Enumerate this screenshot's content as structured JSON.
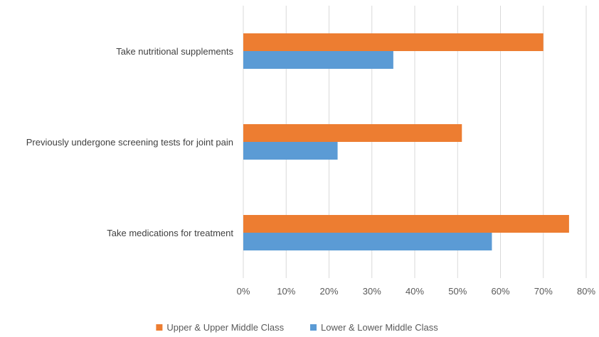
{
  "chart_data": {
    "type": "bar",
    "orientation": "horizontal",
    "categories": [
      "Take nutritional supplements",
      "Previously undergone screening tests for joint pain",
      "Take medications for treatment"
    ],
    "series": [
      {
        "name": "Upper & Upper Middle Class",
        "color": "#ed7d31",
        "values": [
          70,
          51,
          76
        ]
      },
      {
        "name": "Lower & Lower Middle Class",
        "color": "#5b9bd5",
        "values": [
          35,
          22,
          58
        ]
      }
    ],
    "x_ticks": [
      "0%",
      "10%",
      "20%",
      "30%",
      "40%",
      "50%",
      "60%",
      "70%",
      "80%"
    ],
    "xlim": [
      0,
      80
    ],
    "grid": true,
    "gridline_color": "#d9d9d9",
    "legend_position": "bottom"
  }
}
